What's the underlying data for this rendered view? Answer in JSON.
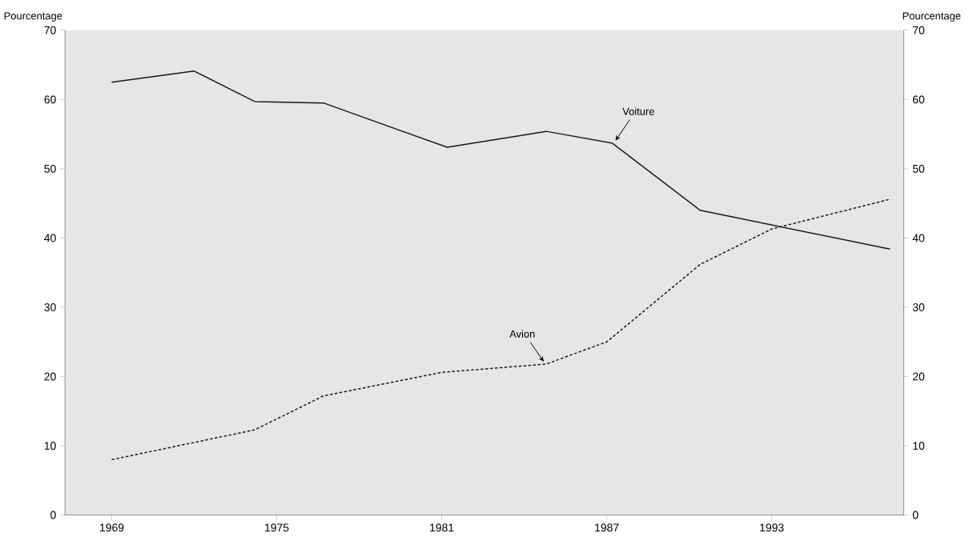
{
  "chart_data": {
    "type": "line",
    "ylabel": "Pourcentage",
    "y2label": "Pourcentage",
    "xlim": [
      1967.3,
      1997.8
    ],
    "xticks": [
      1969,
      1975,
      1981,
      1987,
      1993
    ],
    "ylim": [
      0,
      70
    ],
    "yticks": [
      0,
      10,
      20,
      30,
      40,
      50,
      60,
      70
    ],
    "y2lim": [
      0,
      70
    ],
    "y2ticks": [
      0,
      10,
      20,
      30,
      40,
      50,
      60,
      70
    ],
    "series": [
      {
        "color": "#1a1a1a",
        "line_style": "solid",
        "x": [
          1969,
          1972.0,
          1974.2,
          1976.7,
          1981.2,
          1984.8,
          1987.2,
          1990.4,
          1997.3
        ],
        "values": [
          62.5,
          64.1,
          59.7,
          59.5,
          53.1,
          55.4,
          53.7,
          44.0,
          38.4
        ]
      },
      {
        "color": "#1a1a1a",
        "line_style": "dashed",
        "x": [
          1969,
          1974.2,
          1976.7,
          1981.0,
          1984.8,
          1987.0,
          1990.4,
          1993.0,
          1997.3
        ],
        "values": [
          8.0,
          12.3,
          17.2,
          20.6,
          21.8,
          25.0,
          36.2,
          41.3,
          45.6
        ]
      }
    ],
    "annotations": [
      {
        "text": "Voiture",
        "x": 1987.2,
        "y": 53.7
      },
      {
        "text": "Avion",
        "x": 1984.8,
        "y": 21.8
      }
    ]
  }
}
